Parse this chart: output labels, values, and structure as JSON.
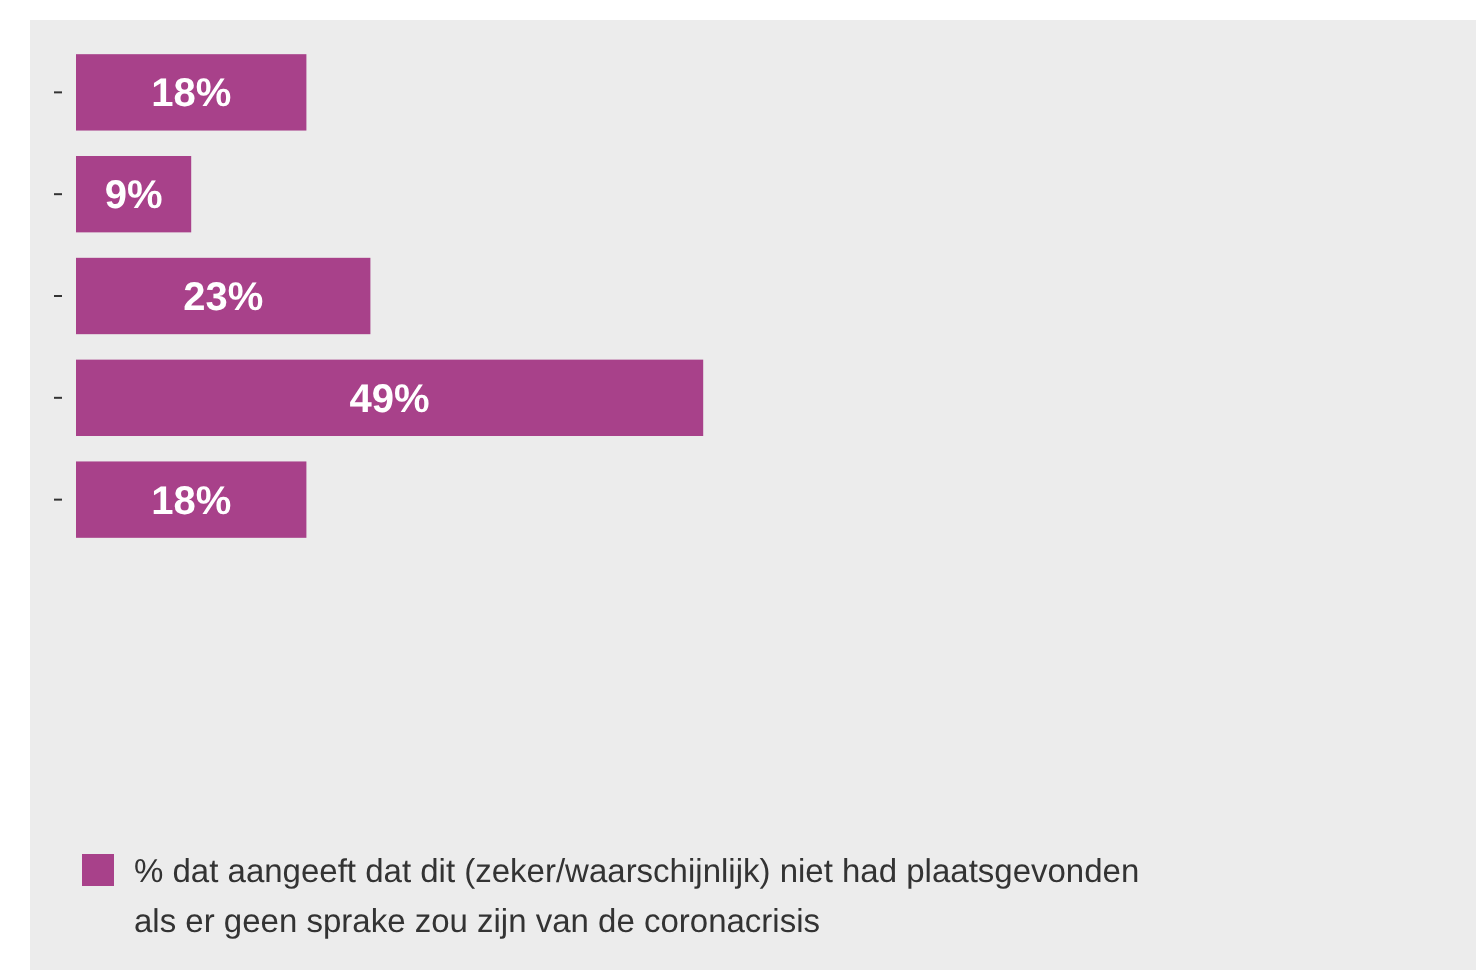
{
  "chart_data": {
    "type": "bar",
    "orientation": "horizontal",
    "categories": [
      null,
      null,
      null,
      null,
      null
    ],
    "legend": "bottom",
    "series": [
      {
        "name": "% dat aangeeft dat dit (zeker/waarschijnlijk) niet had plaatsgevonden als er geen sprake zou zijn van de coronacrisis",
        "color": "#a8418a",
        "values": [
          18,
          9,
          23,
          49,
          18
        ],
        "value_labels": [
          "18%",
          "9%",
          "23%",
          "49%",
          "18%"
        ]
      }
    ]
  }
}
